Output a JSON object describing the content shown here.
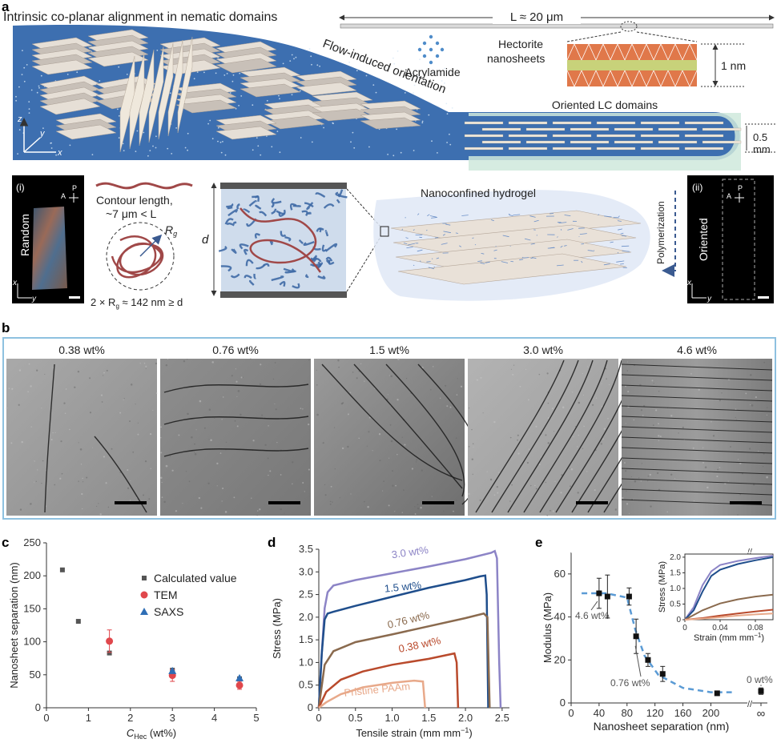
{
  "panel_a": {
    "letter": "a",
    "alignment_text": "Intrinsic co-planar alignment in nematic domains",
    "flow_text": "Flow-induced orientation",
    "length_label": "L ≈ 20 μm",
    "acrylamide_label": "Acrylamide",
    "hectorite_label_1": "Hectorite",
    "hectorite_label_2": "nanosheets",
    "thickness_label": "1 nm",
    "oriented_lc_label": "Oriented LC domains",
    "channel_label_1": "0.5",
    "channel_label_2": "mm",
    "axis_z": "z",
    "axis_y": "y",
    "axis_x": "x",
    "random_panel": {
      "tag": "(i)",
      "label": "Random",
      "polarizer": "P",
      "analyzer": "A",
      "axis_x": "x",
      "axis_y": "y"
    },
    "contour_1": "Contour length,",
    "contour_2": "~7 μm < L",
    "rg_label": "R",
    "rg_sub": "g",
    "rg_equation": "2 × R",
    "rg_equation_sub": "g",
    "rg_equation_tail": " ≈ 142 nm ≥ d",
    "d_label": "d",
    "nanoconfined_label": "Nanoconfined hydrogel",
    "polymerization_label": "Polymerization",
    "oriented_panel": {
      "tag": "(ii)",
      "label": "Oriented",
      "polarizer": "P",
      "analyzer": "A",
      "axis_x": "x",
      "axis_y": "y"
    }
  },
  "panel_b": {
    "letter": "b",
    "tiles": [
      {
        "label": "0.38 wt%"
      },
      {
        "label": "0.76 wt%"
      },
      {
        "label": "1.5 wt%"
      },
      {
        "label": "3.0 wt%"
      },
      {
        "label": "4.6 wt%"
      }
    ]
  },
  "panel_c": {
    "letter": "c"
  },
  "panel_d": {
    "letter": "d"
  },
  "panel_e": {
    "letter": "e"
  },
  "colors": {
    "flow_blue": "#3d6fb0",
    "lc_green": "#cfe9dc",
    "tem_red": "#e0474c",
    "saxs_blue": "#2f6eb5",
    "calc_gray": "#555555",
    "frame_blue": "#8ec1e0",
    "curve_3_0": "#8c84c6",
    "curve_1_5": "#1f4e8c",
    "curve_0_76": "#8a6a4e",
    "curve_0_38": "#b94a2c",
    "curve_pristine": "#e8a98a",
    "fit_dash": "#5b9bd5"
  },
  "chart_data": [
    {
      "id": "c",
      "type": "scatter",
      "xlabel": "C",
      "xlabel_sub": "Hec",
      "xlabel_tail": " (wt%)",
      "ylabel": "Nanosheet separation (nm)",
      "xlim": [
        0,
        5
      ],
      "ylim": [
        0,
        250
      ],
      "xticks": [
        0,
        1,
        2,
        3,
        4,
        5
      ],
      "yticks": [
        0,
        50,
        100,
        150,
        200,
        250
      ],
      "legend_position": "right",
      "series": [
        {
          "name": "Calculated value",
          "marker": "square",
          "color": "#555555",
          "points": [
            {
              "x": 0.38,
              "y": 209
            },
            {
              "x": 0.76,
              "y": 131
            },
            {
              "x": 1.5,
              "y": 83
            },
            {
              "x": 3.0,
              "y": 57
            },
            {
              "x": 4.6,
              "y": 44
            }
          ]
        },
        {
          "name": "TEM",
          "marker": "circle",
          "color": "#e0474c",
          "points": [
            {
              "x": 1.5,
              "y": 101,
              "err": 17
            },
            {
              "x": 3.0,
              "y": 49,
              "err": 9
            },
            {
              "x": 4.6,
              "y": 34,
              "err": 6
            }
          ]
        },
        {
          "name": "SAXS",
          "marker": "triangle",
          "color": "#2f6eb5",
          "points": [
            {
              "x": 3.0,
              "y": 56
            },
            {
              "x": 4.6,
              "y": 45
            }
          ]
        }
      ]
    },
    {
      "id": "d",
      "type": "line",
      "xlabel": "Tensile strain (mm mm",
      "xlabel_sup": "−1",
      "xlabel_tail": ")",
      "ylabel": "Stress (MPa)",
      "xlim": [
        0,
        2.6
      ],
      "ylim": [
        0,
        3.5
      ],
      "xticks": [
        0,
        0.5,
        1.0,
        1.5,
        2.0,
        2.5
      ],
      "xtick_labels": [
        "0",
        "0.5",
        "1.0",
        "1.5",
        "2.0",
        "2.5"
      ],
      "yticks": [
        0,
        0.5,
        1.0,
        1.5,
        2.0,
        2.5,
        3.0,
        3.5
      ],
      "ytick_labels": [
        "0",
        "0.5",
        "1.0",
        "1.5",
        "2.0",
        "2.5",
        "3.0",
        "3.5"
      ],
      "series": [
        {
          "name": "3.0 wt%",
          "color": "#8c84c6",
          "points": [
            [
              0,
              0
            ],
            [
              0.04,
              1.2
            ],
            [
              0.08,
              2.2
            ],
            [
              0.12,
              2.55
            ],
            [
              0.2,
              2.7
            ],
            [
              0.5,
              2.82
            ],
            [
              1.0,
              2.97
            ],
            [
              1.5,
              3.12
            ],
            [
              2.0,
              3.28
            ],
            [
              2.35,
              3.42
            ],
            [
              2.4,
              3.46
            ],
            [
              2.43,
              3.3
            ],
            [
              2.46,
              1.0
            ],
            [
              2.48,
              0
            ]
          ]
        },
        {
          "name": "1.5 wt%",
          "color": "#1f4e8c",
          "points": [
            [
              0,
              0
            ],
            [
              0.04,
              1.2
            ],
            [
              0.08,
              1.95
            ],
            [
              0.12,
              2.08
            ],
            [
              0.2,
              2.12
            ],
            [
              0.5,
              2.25
            ],
            [
              1.0,
              2.45
            ],
            [
              1.5,
              2.65
            ],
            [
              2.0,
              2.82
            ],
            [
              2.2,
              2.9
            ],
            [
              2.27,
              2.92
            ],
            [
              2.29,
              2.5
            ],
            [
              2.31,
              0
            ]
          ]
        },
        {
          "name": "0.76 wt%",
          "color": "#8a6a4e",
          "points": [
            [
              0,
              0
            ],
            [
              0.08,
              0.95
            ],
            [
              0.2,
              1.25
            ],
            [
              0.5,
              1.45
            ],
            [
              1.0,
              1.62
            ],
            [
              1.5,
              1.8
            ],
            [
              2.0,
              1.98
            ],
            [
              2.25,
              2.08
            ],
            [
              2.3,
              2.0
            ],
            [
              2.33,
              0
            ]
          ]
        },
        {
          "name": "0.38 wt%",
          "color": "#b94a2c",
          "points": [
            [
              0,
              0
            ],
            [
              0.1,
              0.35
            ],
            [
              0.3,
              0.62
            ],
            [
              0.6,
              0.8
            ],
            [
              1.0,
              0.95
            ],
            [
              1.5,
              1.08
            ],
            [
              1.85,
              1.2
            ],
            [
              1.88,
              1.0
            ],
            [
              1.9,
              0
            ]
          ]
        },
        {
          "name": "Pristine PAAm",
          "color": "#e8a98a",
          "points": [
            [
              0,
              0
            ],
            [
              0.1,
              0.12
            ],
            [
              0.3,
              0.3
            ],
            [
              0.6,
              0.45
            ],
            [
              1.0,
              0.55
            ],
            [
              1.3,
              0.6
            ],
            [
              1.42,
              0.58
            ],
            [
              1.45,
              0
            ]
          ]
        }
      ]
    },
    {
      "id": "e",
      "type": "scatter",
      "xlabel": "Nanosheet separation (nm)",
      "ylabel": "Modulus (MPa)",
      "xlim": [
        0,
        240
      ],
      "ylim": [
        0,
        70
      ],
      "xticks": [
        0,
        40,
        80,
        120,
        160,
        200
      ],
      "yticks": [
        0,
        20,
        40,
        60
      ],
      "break_tick_label": "∞",
      "break_symbol": "//",
      "annotations": [
        "4.6 wt%",
        "0.76 wt%",
        "0 wt%"
      ],
      "points": [
        {
          "x": 40,
          "y": 51,
          "err": 7
        },
        {
          "x": 52,
          "y": 49.5,
          "err": 10
        },
        {
          "x": 83,
          "y": 49.5,
          "err": 4
        },
        {
          "x": 93,
          "y": 31,
          "err": 8
        },
        {
          "x": 110,
          "y": 20,
          "err": 3
        },
        {
          "x": 131,
          "y": 13.5,
          "err": 3.5
        },
        {
          "x": 209,
          "y": 4.5,
          "err": 1
        },
        {
          "x": "inf",
          "y": 5.5,
          "err": 1.5
        }
      ],
      "inset": {
        "type": "line",
        "xlabel": "Strain (mm mm",
        "xlabel_sup": "−1",
        "xlabel_tail": ")",
        "ylabel": "Stress (MPa)",
        "xlim": [
          0,
          0.1
        ],
        "ylim": [
          0,
          2.1
        ],
        "xticks": [
          0,
          0.04,
          0.08
        ],
        "xtick_labels": [
          "0",
          "0.04",
          "0.08"
        ],
        "yticks": [
          0,
          0.5,
          1.0,
          1.5,
          2.0
        ],
        "ytick_labels": [
          "0",
          "0.5",
          "1.0",
          "1.5",
          "2.0"
        ],
        "series": [
          {
            "color": "#8c84c6",
            "points": [
              [
                0,
                0
              ],
              [
                0.01,
                0.4
              ],
              [
                0.02,
                1.1
              ],
              [
                0.03,
                1.55
              ],
              [
                0.04,
                1.75
              ],
              [
                0.06,
                1.88
              ],
              [
                0.08,
                1.97
              ],
              [
                0.1,
                2.05
              ]
            ]
          },
          {
            "color": "#1f4e8c",
            "points": [
              [
                0,
                0
              ],
              [
                0.01,
                0.3
              ],
              [
                0.02,
                0.9
              ],
              [
                0.03,
                1.4
              ],
              [
                0.04,
                1.6
              ],
              [
                0.06,
                1.78
              ],
              [
                0.08,
                1.9
              ],
              [
                0.1,
                2.0
              ]
            ]
          },
          {
            "color": "#8a6a4e",
            "points": [
              [
                0,
                0
              ],
              [
                0.01,
                0.15
              ],
              [
                0.02,
                0.3
              ],
              [
                0.04,
                0.52
              ],
              [
                0.06,
                0.65
              ],
              [
                0.08,
                0.74
              ],
              [
                0.1,
                0.8
              ]
            ]
          },
          {
            "color": "#b94a2c",
            "points": [
              [
                0,
                0
              ],
              [
                0.02,
                0.05
              ],
              [
                0.04,
                0.13
              ],
              [
                0.06,
                0.2
              ],
              [
                0.08,
                0.26
              ],
              [
                0.1,
                0.32
              ]
            ]
          },
          {
            "color": "#e8a98a",
            "points": [
              [
                0,
                0
              ],
              [
                0.02,
                0.03
              ],
              [
                0.04,
                0.08
              ],
              [
                0.06,
                0.13
              ],
              [
                0.08,
                0.17
              ],
              [
                0.1,
                0.2
              ]
            ]
          }
        ]
      }
    }
  ]
}
